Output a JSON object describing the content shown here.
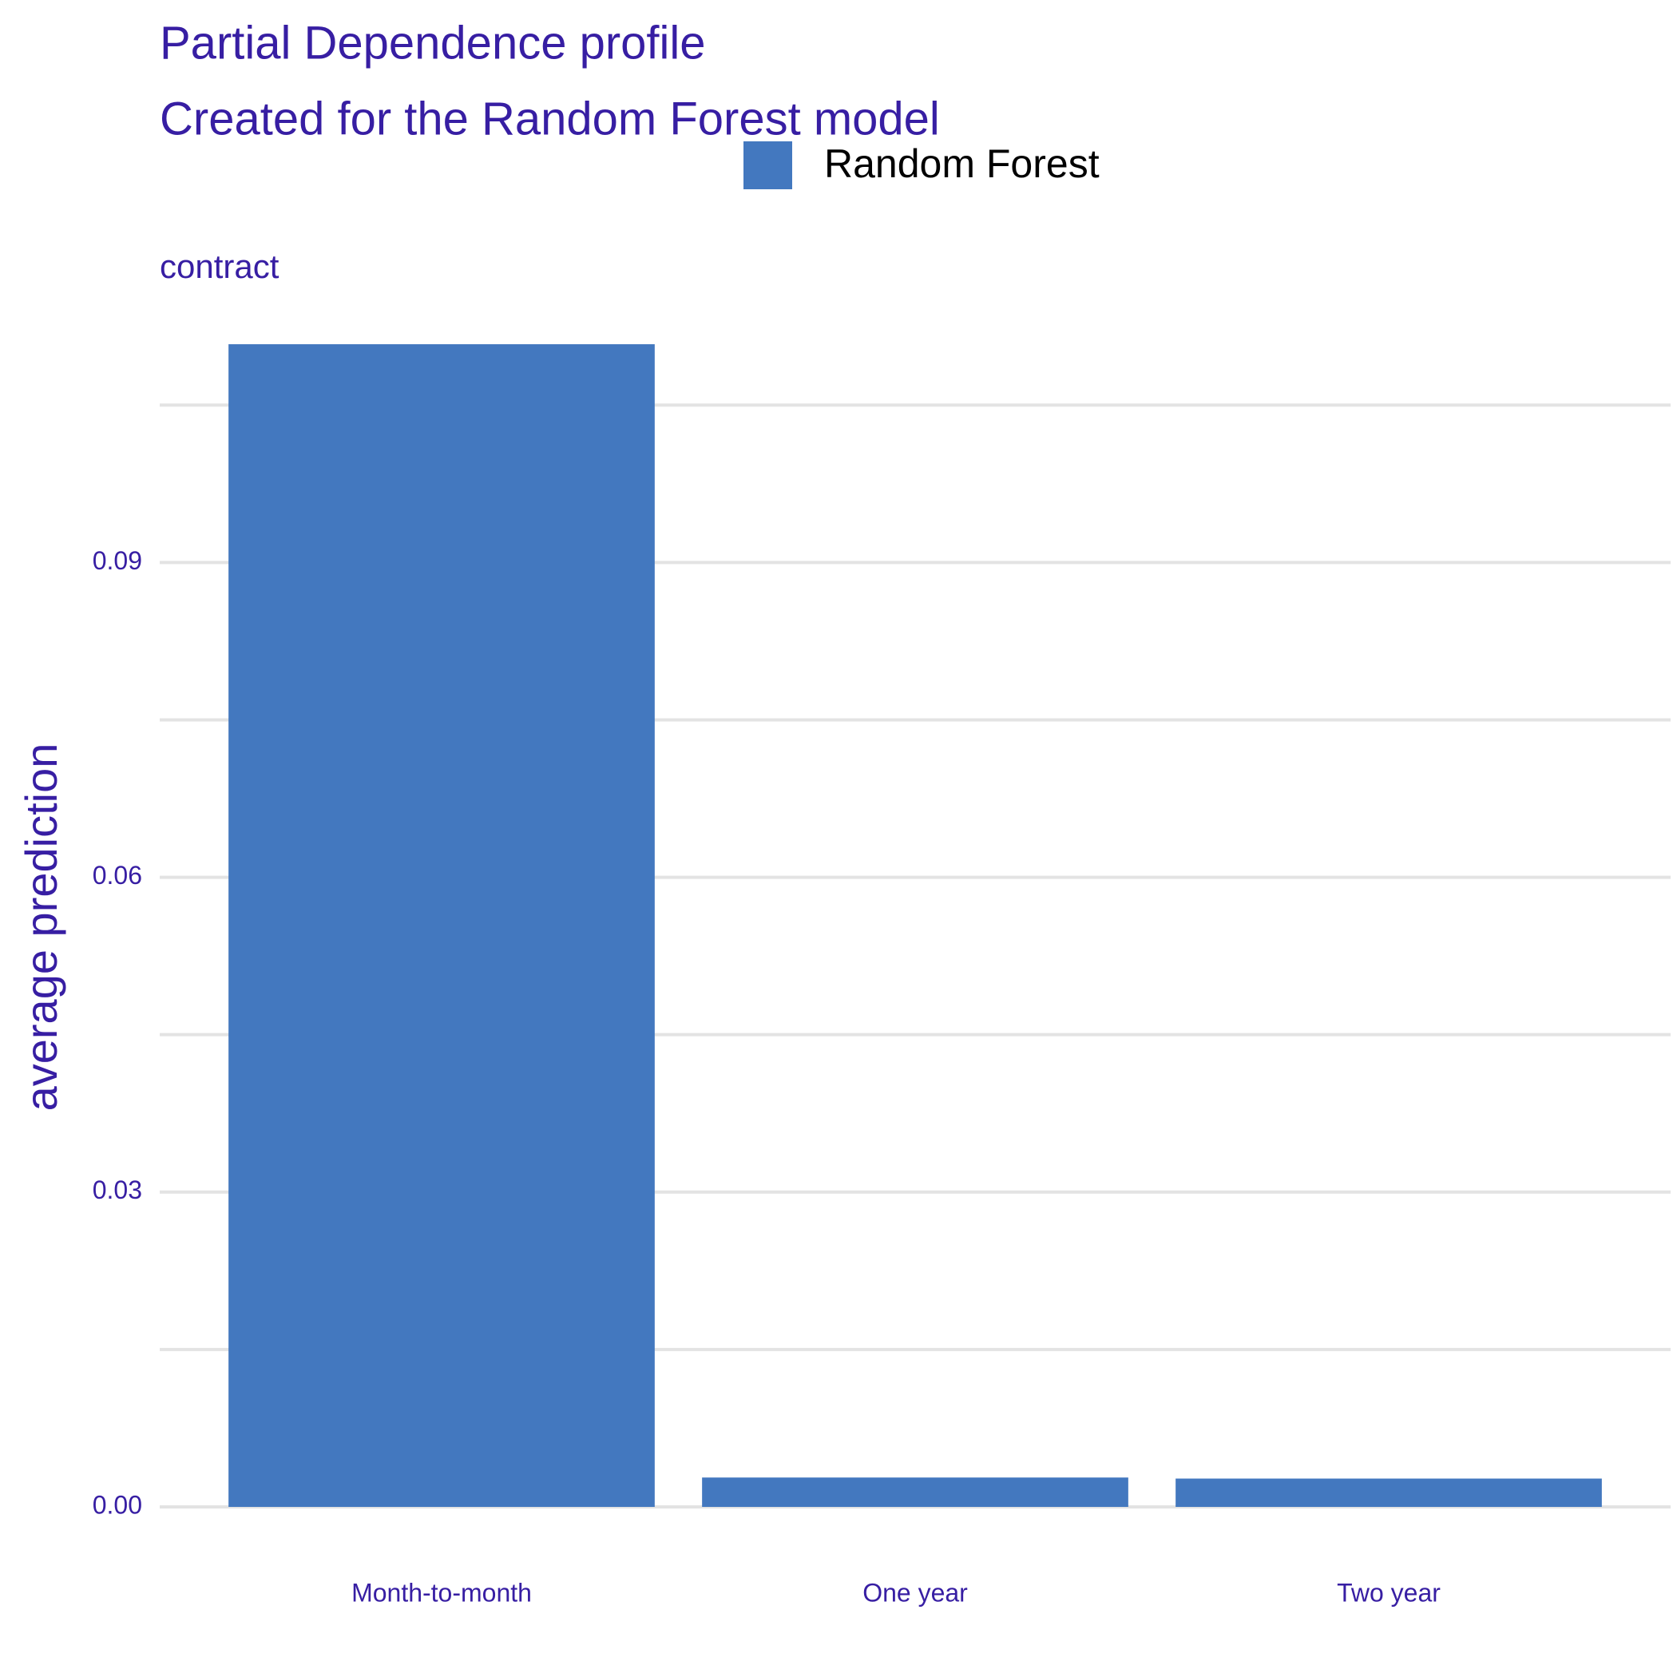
{
  "chart_data": {
    "type": "bar",
    "title": "Partial Dependence profile",
    "subtitle": "Created for the Random Forest model",
    "facet_label": "contract",
    "y_label": "average prediction",
    "categories": [
      "Month-to-month",
      "One year",
      "Two year"
    ],
    "series": [
      {
        "name": "Random Forest",
        "color": "#4378bf",
        "values": [
          0.1108,
          0.0028,
          0.0027
        ]
      }
    ],
    "ylim": [
      0,
      0.114
    ],
    "yticks": [
      {
        "value": 0,
        "label": "0.00"
      },
      0.03,
      0.06,
      0.09
    ],
    "minor_yticks": [
      0.015,
      0.045,
      0.075,
      0.105
    ],
    "grid": true,
    "legend_position": "top"
  }
}
